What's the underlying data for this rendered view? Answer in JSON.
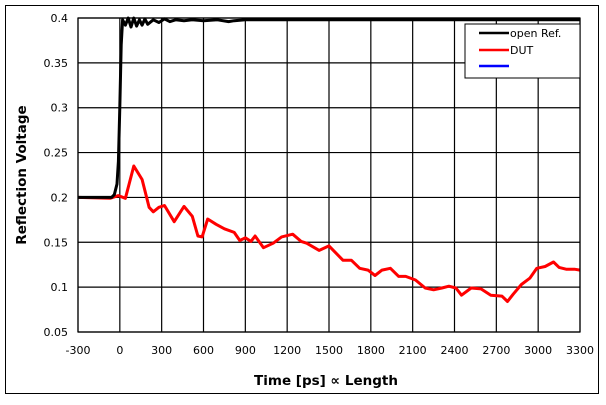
{
  "chart_data": {
    "type": "line",
    "title": "",
    "xlabel": "Time [ps] ∝ Length",
    "ylabel": "Reflection Voltage",
    "xlim": [
      -300,
      3300
    ],
    "ylim": [
      0.05,
      0.4
    ],
    "x_ticks": [
      "-300",
      "0",
      "300",
      "600",
      "900",
      "1200",
      "1500",
      "1800",
      "2100",
      "2400",
      "2700",
      "3000",
      "3300"
    ],
    "y_ticks": [
      "0.05",
      "0.1",
      "0.15",
      "0.2",
      "0.25",
      "0.3",
      "0.35",
      "0.4"
    ],
    "grid": true,
    "legend_position": "top-right",
    "series": [
      {
        "name": "open Ref.",
        "color": "#000000",
        "x": [
          -300,
          -100,
          -60,
          -40,
          -20,
          -10,
          0,
          10,
          20,
          40,
          60,
          80,
          100,
          120,
          140,
          160,
          180,
          200,
          240,
          280,
          320,
          360,
          400,
          460,
          520,
          600,
          700,
          780,
          820,
          900,
          1000,
          1200,
          1500,
          1800,
          2100,
          2400,
          2700,
          3000,
          3300
        ],
        "y": [
          0.2,
          0.2,
          0.2,
          0.203,
          0.215,
          0.24,
          0.3,
          0.37,
          0.398,
          0.392,
          0.4,
          0.39,
          0.4,
          0.391,
          0.398,
          0.392,
          0.399,
          0.393,
          0.398,
          0.395,
          0.399,
          0.396,
          0.398,
          0.397,
          0.398,
          0.397,
          0.398,
          0.396,
          0.397,
          0.398,
          0.398,
          0.398,
          0.398,
          0.398,
          0.398,
          0.398,
          0.398,
          0.398,
          0.398
        ]
      },
      {
        "name": "DUT",
        "color": "#ff0000",
        "x": [
          -300,
          -70,
          -10,
          40,
          100,
          160,
          210,
          240,
          280,
          320,
          390,
          460,
          520,
          560,
          590,
          630,
          690,
          750,
          820,
          860,
          900,
          940,
          970,
          1030,
          1100,
          1160,
          1240,
          1300,
          1340,
          1430,
          1500,
          1600,
          1660,
          1720,
          1780,
          1830,
          1880,
          1940,
          2000,
          2050,
          2120,
          2190,
          2250,
          2310,
          2360,
          2410,
          2450,
          2520,
          2590,
          2660,
          2740,
          2780,
          2820,
          2880,
          2940,
          2990,
          3050,
          3110,
          3150,
          3200,
          3260,
          3300
        ],
        "y": [
          0.2,
          0.199,
          0.202,
          0.199,
          0.235,
          0.22,
          0.189,
          0.184,
          0.189,
          0.191,
          0.173,
          0.19,
          0.179,
          0.157,
          0.156,
          0.176,
          0.17,
          0.165,
          0.161,
          0.152,
          0.155,
          0.151,
          0.157,
          0.144,
          0.149,
          0.156,
          0.159,
          0.151,
          0.149,
          0.141,
          0.146,
          0.13,
          0.13,
          0.121,
          0.119,
          0.113,
          0.119,
          0.121,
          0.112,
          0.112,
          0.108,
          0.099,
          0.097,
          0.099,
          0.101,
          0.099,
          0.091,
          0.099,
          0.098,
          0.091,
          0.09,
          0.084,
          0.092,
          0.103,
          0.11,
          0.121,
          0.123,
          0.128,
          0.122,
          0.12,
          0.12,
          0.119
        ]
      },
      {
        "name": "",
        "color": "#0000ff",
        "x": [],
        "y": []
      }
    ]
  },
  "legend": {
    "items": [
      {
        "label": "open Ref.",
        "color": "#000000"
      },
      {
        "label": "DUT",
        "color": "#ff0000"
      },
      {
        "label": "",
        "color": "#0000ff"
      }
    ]
  },
  "axes": {
    "xlabel": "Time [ps] ∝ Length",
    "ylabel": "Reflection Voltage"
  }
}
